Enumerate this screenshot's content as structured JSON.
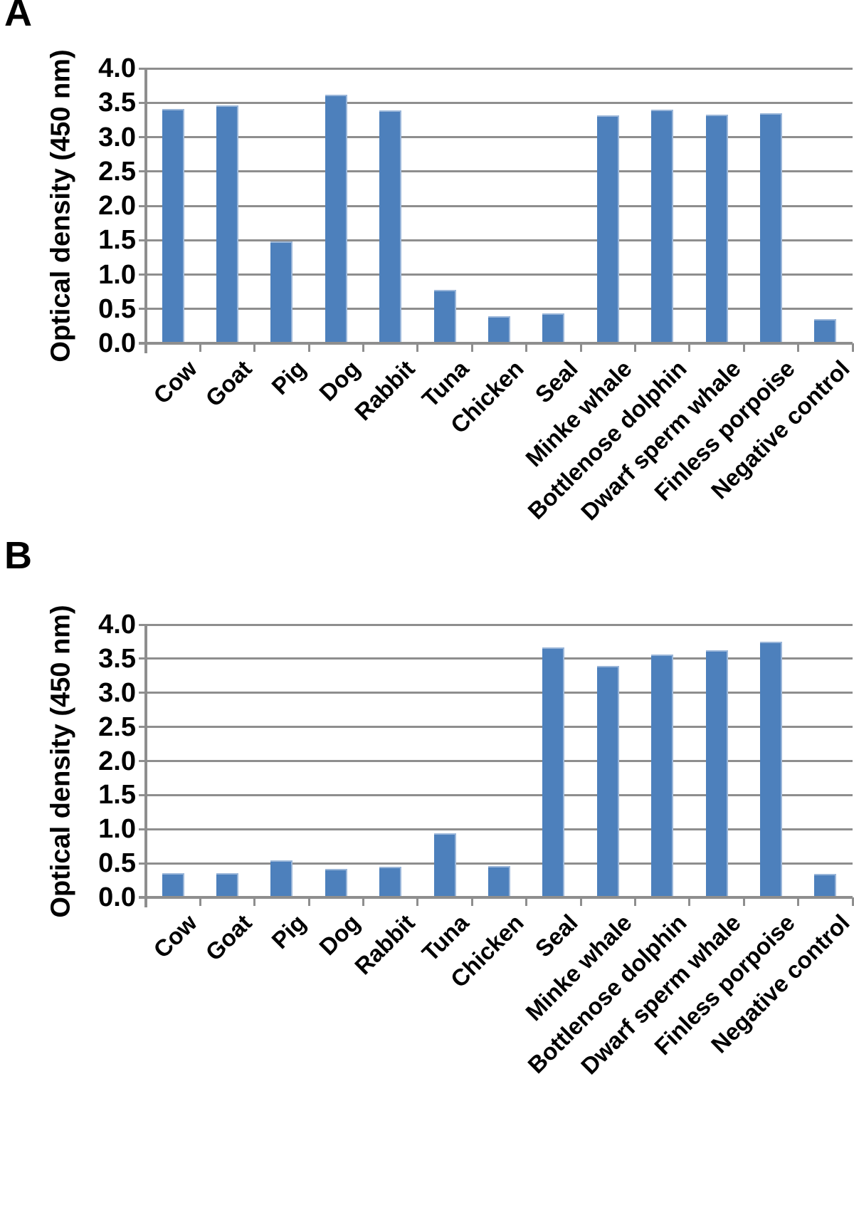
{
  "page": {
    "background": "#ffffff"
  },
  "chart_data": [
    {
      "type": "bar",
      "panel_label": "A",
      "title": "",
      "xlabel": "",
      "ylabel": "Optical density (450 nm)",
      "ylim": [
        0.0,
        4.0
      ],
      "ytick_step": 0.5,
      "yticks": [
        "0.0",
        "0.5",
        "1.0",
        "1.5",
        "2.0",
        "2.5",
        "3.0",
        "3.5",
        "4.0"
      ],
      "grid": true,
      "legend": false,
      "label_rotation_deg": 45,
      "bar_color": "#4d80bc",
      "bar_edge_color": "#9ab6d9",
      "grid_color": "#8e8e8e",
      "axis_color": "#8e8e8e",
      "categories": [
        "Cow",
        "Goat",
        "Pig",
        "Dog",
        "Rabbit",
        "Tuna",
        "Chicken",
        "Seal",
        "Minke whale",
        "Bottlenose dolphin",
        "Dwarf sperm whale",
        "Finless porpoise",
        "Negative control"
      ],
      "values": [
        3.41,
        3.46,
        1.48,
        3.62,
        3.39,
        0.78,
        0.39,
        0.44,
        3.32,
        3.4,
        3.33,
        3.35,
        0.35
      ]
    },
    {
      "type": "bar",
      "panel_label": "B",
      "title": "",
      "xlabel": "",
      "ylabel": "Optical density (450 nm)",
      "ylim": [
        0.0,
        4.0
      ],
      "ytick_step": 0.5,
      "yticks": [
        "0.0",
        "0.5",
        "1.0",
        "1.5",
        "2.0",
        "2.5",
        "3.0",
        "3.5",
        "4.0"
      ],
      "grid": true,
      "legend": false,
      "label_rotation_deg": 45,
      "bar_color": "#4d80bc",
      "bar_edge_color": "#9ab6d9",
      "grid_color": "#8e8e8e",
      "axis_color": "#8e8e8e",
      "categories": [
        "Cow",
        "Goat",
        "Pig",
        "Dog",
        "Rabbit",
        "Tuna",
        "Chicken",
        "Seal",
        "Minke whale",
        "Bottlenose dolphin",
        "Dwarf sperm whale",
        "Finless porpoise",
        "Negative control"
      ],
      "values": [
        0.36,
        0.35,
        0.54,
        0.42,
        0.45,
        0.94,
        0.46,
        3.67,
        3.39,
        3.56,
        3.62,
        3.75,
        0.34
      ]
    }
  ]
}
